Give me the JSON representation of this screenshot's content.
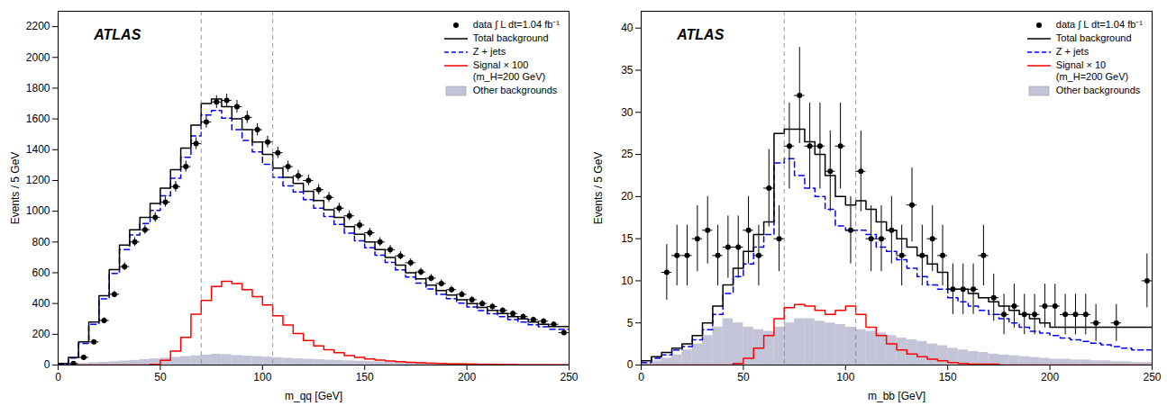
{
  "chart_data": [
    {
      "type": "histogram",
      "xlabel": "m_qq [GeV]",
      "ylabel": "Events / 5 GeV",
      "xlim": [
        0,
        250
      ],
      "ylim": [
        0,
        2300
      ],
      "xticks": [
        0,
        50,
        100,
        150,
        200,
        250
      ],
      "yticks": [
        0,
        200,
        400,
        600,
        800,
        1000,
        1200,
        1400,
        1600,
        1800,
        2000,
        2200
      ],
      "annotations": [
        "ATLAS"
      ],
      "vlines": [
        70,
        105
      ],
      "legend": "upper right",
      "bins": [
        0,
        5,
        10,
        15,
        20,
        25,
        30,
        35,
        40,
        45,
        50,
        55,
        60,
        65,
        70,
        75,
        80,
        85,
        90,
        95,
        100,
        105,
        110,
        115,
        120,
        125,
        130,
        135,
        140,
        145,
        150,
        155,
        160,
        165,
        170,
        175,
        180,
        185,
        190,
        195,
        200,
        205,
        210,
        215,
        220,
        225,
        230,
        235,
        240,
        245,
        250
      ],
      "series": [
        {
          "name": "data ∫ L dt=1.04 fb⁻¹",
          "type": "errorbar",
          "color": "black",
          "marker": "o",
          "x": [
            7.5,
            12.5,
            17.5,
            22.5,
            27.5,
            32.5,
            37.5,
            42.5,
            47.5,
            52.5,
            57.5,
            62.5,
            67.5,
            72.5,
            77.5,
            82.5,
            87.5,
            92.5,
            97.5,
            102.5,
            107.5,
            112.5,
            117.5,
            122.5,
            127.5,
            132.5,
            137.5,
            142.5,
            147.5,
            152.5,
            157.5,
            162.5,
            167.5,
            172.5,
            177.5,
            182.5,
            187.5,
            192.5,
            197.5,
            202.5,
            207.5,
            212.5,
            217.5,
            222.5,
            227.5,
            232.5,
            237.5,
            242.5,
            247.5
          ],
          "values": [
            10,
            50,
            150,
            290,
            460,
            640,
            800,
            880,
            960,
            1060,
            1160,
            1290,
            1440,
            1580,
            1710,
            1720,
            1680,
            1610,
            1530,
            1450,
            1380,
            1290,
            1230,
            1200,
            1140,
            1090,
            1020,
            970,
            910,
            860,
            800,
            750,
            710,
            665,
            605,
            565,
            530,
            490,
            460,
            425,
            400,
            380,
            355,
            335,
            315,
            295,
            285,
            265,
            210
          ],
          "yerr": [
            3.162,
            7.071,
            12.247,
            17.029,
            21.448,
            25.298,
            28.284,
            29.665,
            30.984,
            32.558,
            34.059,
            35.917,
            37.947,
            39.749,
            41.352,
            41.473,
            40.988,
            40.125,
            39.115,
            38.079,
            37.148,
            35.917,
            35.071,
            34.641,
            33.764,
            33.015,
            31.937,
            31.145,
            30.166,
            29.326,
            28.284,
            27.386,
            26.646,
            25.788,
            24.597,
            23.77,
            23.022,
            22.136,
            21.448,
            20.616,
            20,
            19.494,
            18.841,
            18.303,
            17.748,
            17.176,
            16.882,
            16.279,
            14.491
          ],
          "xerr": 2.5
        },
        {
          "name": "Total background",
          "type": "step",
          "color": "black",
          "values": [
            10,
            50,
            150,
            280,
            450,
            620,
            780,
            880,
            960,
            1050,
            1150,
            1270,
            1410,
            1560,
            1700,
            1730,
            1680,
            1600,
            1530,
            1450,
            1370,
            1280,
            1220,
            1180,
            1130,
            1070,
            1010,
            960,
            900,
            850,
            800,
            750,
            700,
            650,
            600,
            560,
            520,
            485,
            455,
            425,
            400,
            375,
            355,
            335,
            315,
            300,
            280,
            265,
            250,
            250
          ]
        },
        {
          "name": "Z + jets",
          "type": "step",
          "color": "blue",
          "line_style": "dashed",
          "values": [
            8,
            45,
            140,
            265,
            430,
            595,
            750,
            845,
            920,
            1005,
            1100,
            1215,
            1350,
            1490,
            1625,
            1655,
            1605,
            1530,
            1460,
            1385,
            1305,
            1220,
            1165,
            1125,
            1075,
            1020,
            965,
            915,
            858,
            808,
            762,
            714,
            667,
            619,
            572,
            532,
            494,
            460,
            431,
            402,
            378,
            354,
            334,
            315,
            296,
            280,
            262,
            248,
            233,
            233
          ]
        },
        {
          "name": "Signal × 100\n(m_H=200 GeV)",
          "type": "step",
          "color": "red",
          "values": [
            0,
            0,
            0,
            0,
            0,
            0,
            0,
            0,
            0,
            5,
            30,
            90,
            180,
            330,
            420,
            510,
            545,
            530,
            490,
            445,
            390,
            320,
            260,
            205,
            160,
            125,
            100,
            80,
            62,
            50,
            40,
            32,
            26,
            22,
            18,
            15,
            12,
            10,
            8,
            7,
            6,
            5,
            4,
            3,
            3,
            2,
            2,
            1,
            1,
            1
          ]
        },
        {
          "name": "Other backgrounds",
          "type": "bar",
          "color": "#b0b0cc",
          "values": [
            2,
            5,
            10,
            15,
            18,
            22,
            26,
            30,
            35,
            40,
            45,
            50,
            55,
            60,
            65,
            70,
            68,
            62,
            58,
            55,
            52,
            48,
            44,
            40,
            38,
            35,
            32,
            30,
            27,
            25,
            23,
            21,
            19,
            18,
            16,
            15,
            14,
            13,
            12,
            11,
            10,
            9,
            8,
            7,
            7,
            6,
            6,
            5,
            5,
            5
          ]
        }
      ]
    },
    {
      "type": "histogram",
      "xlabel": "m_bb [GeV]",
      "ylabel": "Events / 5 GeV",
      "xlim": [
        0,
        250
      ],
      "ylim": [
        0,
        42
      ],
      "xticks": [
        0,
        50,
        100,
        150,
        200,
        250
      ],
      "yticks": [
        0,
        5,
        10,
        15,
        20,
        25,
        30,
        35,
        40
      ],
      "annotations": [
        "ATLAS"
      ],
      "vlines": [
        70,
        105
      ],
      "legend": "upper right",
      "bins": [
        0,
        5,
        10,
        15,
        20,
        25,
        30,
        35,
        40,
        45,
        50,
        55,
        60,
        65,
        70,
        75,
        80,
        85,
        90,
        95,
        100,
        105,
        110,
        115,
        120,
        125,
        130,
        135,
        140,
        145,
        150,
        155,
        160,
        165,
        170,
        175,
        180,
        185,
        190,
        195,
        200,
        205,
        210,
        215,
        220,
        225,
        230,
        235,
        240,
        245,
        250
      ],
      "series": [
        {
          "name": "data ∫ L dt=1.04 fb⁻¹",
          "type": "errorbar",
          "color": "black",
          "marker": "o",
          "x": [
            12.5,
            17.5,
            22.5,
            27.5,
            32.5,
            37.5,
            42.5,
            47.5,
            52.5,
            57.5,
            62.5,
            67.5,
            72.5,
            77.5,
            82.5,
            87.5,
            92.5,
            97.5,
            102.5,
            107.5,
            112.5,
            117.5,
            122.5,
            127.5,
            132.5,
            137.5,
            142.5,
            147.5,
            152.5,
            157.5,
            162.5,
            167.5,
            172.5,
            177.5,
            182.5,
            187.5,
            192.5,
            197.5,
            202.5,
            207.5,
            212.5,
            217.5,
            222.5,
            232.5,
            247.5
          ],
          "values": [
            11,
            13,
            13,
            15,
            16,
            13,
            14,
            14,
            16,
            13,
            21,
            15,
            26,
            32,
            26,
            26,
            23,
            26,
            16,
            23,
            15,
            15,
            16,
            13,
            19,
            13,
            15,
            13,
            9,
            9,
            9,
            13,
            8,
            6,
            7,
            6,
            6,
            7,
            7,
            6,
            6,
            6,
            5,
            5,
            10
          ],
          "yerr": [
            3.3,
            3.6,
            3.6,
            3.9,
            4.0,
            3.6,
            3.7,
            3.7,
            4.0,
            3.6,
            4.6,
            3.9,
            5.1,
            5.7,
            5.1,
            5.1,
            4.8,
            5.1,
            4.0,
            4.8,
            3.9,
            3.9,
            4.0,
            3.6,
            4.4,
            3.6,
            3.9,
            3.6,
            3.0,
            3.0,
            3.0,
            3.6,
            2.8,
            2.4,
            2.6,
            2.4,
            2.4,
            2.6,
            2.6,
            2.4,
            2.4,
            2.4,
            2.2,
            2.2,
            3.2
          ],
          "xerr": 2.5
        },
        {
          "name": "Total background",
          "type": "step",
          "color": "black",
          "values": [
            0.5,
            1.0,
            1.5,
            2.0,
            2.5,
            3.5,
            5.0,
            7.0,
            9.5,
            11.5,
            13.5,
            15.5,
            17.0,
            27.5,
            28.0,
            28.0,
            26.5,
            25.0,
            22.5,
            20.0,
            19.0,
            19.5,
            18.5,
            17.0,
            16.0,
            15.0,
            14.0,
            13.0,
            12.0,
            11.0,
            9.0,
            9.0,
            8.5,
            8.0,
            7.5,
            7.0,
            6.5,
            6.0,
            5.5,
            5.0,
            4.5,
            4.5,
            4.5,
            4.5,
            4.5,
            4.5,
            4.5,
            4.5,
            4.5,
            4.5
          ]
        },
        {
          "name": "Z + jets",
          "type": "step",
          "color": "blue",
          "line_style": "dashed",
          "values": [
            0.3,
            0.8,
            1.2,
            1.8,
            2.2,
            3.0,
            4.2,
            6.0,
            8.5,
            10.5,
            12.0,
            14.0,
            15.5,
            24.0,
            24.5,
            22.5,
            21.0,
            20.0,
            18.5,
            16.5,
            16.0,
            16.0,
            15.5,
            14.0,
            13.5,
            12.5,
            11.5,
            10.5,
            9.5,
            9.0,
            8.0,
            7.5,
            7.0,
            6.5,
            6.0,
            5.5,
            5.0,
            4.5,
            4.0,
            3.8,
            3.5,
            3.2,
            3.0,
            2.8,
            2.6,
            2.4,
            2.2,
            2.0,
            1.8,
            1.8
          ]
        },
        {
          "name": "Signal × 10\n(m_H=200 GeV)",
          "type": "step",
          "color": "red",
          "values": [
            0,
            0,
            0,
            0,
            0,
            0,
            0,
            0,
            0,
            0.2,
            0.8,
            2.0,
            3.5,
            5.5,
            6.8,
            7.2,
            7.0,
            6.5,
            6.0,
            6.5,
            7.0,
            6.0,
            4.5,
            3.5,
            2.5,
            1.8,
            1.3,
            1.0,
            0.7,
            0.5,
            0.3,
            0.2,
            0.1,
            0.1,
            0.1,
            0,
            0,
            0,
            0,
            0,
            0,
            0,
            0,
            0,
            0,
            0,
            0,
            0,
            0,
            0
          ]
        },
        {
          "name": "Other backgrounds",
          "type": "bar",
          "color": "#b0b0cc",
          "values": [
            0.2,
            0.5,
            0.8,
            1.2,
            1.8,
            2.5,
            3.5,
            4.5,
            5.5,
            5.0,
            4.5,
            4.2,
            4.0,
            4.5,
            5.0,
            5.5,
            5.5,
            5.2,
            5.0,
            4.8,
            4.5,
            4.2,
            4.0,
            3.8,
            3.5,
            3.2,
            3.0,
            2.8,
            2.5,
            2.3,
            2.0,
            1.8,
            1.6,
            1.5,
            1.3,
            1.2,
            1.1,
            1.0,
            0.9,
            0.8,
            0.7,
            0.7,
            0.6,
            0.6,
            0.5,
            0.5,
            0.4,
            0.4,
            0.3,
            0.3
          ]
        }
      ]
    }
  ]
}
